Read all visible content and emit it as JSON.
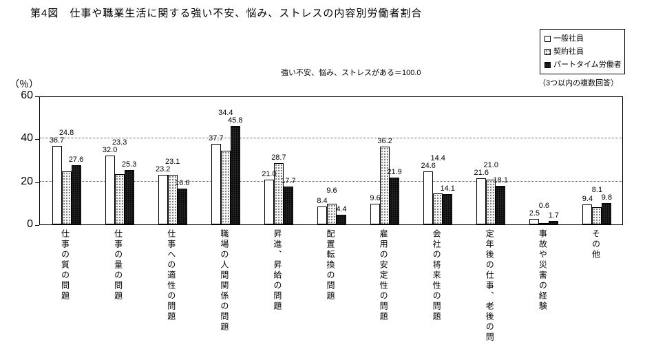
{
  "title": "第4図　仕事や職業生活に関する強い不安、悩み、ストレスの内容別労働者割合",
  "subtitle": "強い不安、悩み、ストレスがある＝100.0",
  "legend": {
    "note": "（3つ以内の複数回答）"
  },
  "y_axis": {
    "unit_label": "（％）",
    "ticks": [
      0,
      20,
      40,
      60
    ],
    "max": 60
  },
  "colors": {
    "axis": "#000000",
    "grid": "#555555",
    "bar_plain": "#ffffff",
    "bar_dotted": "#f4f4f4",
    "bar_dark": "#2b2b2b"
  },
  "chart_data": {
    "type": "bar",
    "title": "第4図　仕事や職業生活に関する強い不安、悩み、ストレスの内容別労働者割合",
    "subtitle": "強い不安、悩み、ストレスがある＝100.0",
    "xlabel": "",
    "ylabel": "（％）",
    "ylim": [
      0,
      60
    ],
    "grid": "horizontal-dotted-at-20-and-40",
    "legend_position": "top-right",
    "categories": [
      "仕事の質の問題",
      "仕事の量の問題",
      "仕事への適性の問題",
      "職場の人間関係の問題",
      "昇進、昇給の問題",
      "配置転換の問題",
      "雇用の安定性の問題",
      "会社の将来性の問題",
      "定年後の仕事、老後の問",
      "事故や災害の経験",
      "その他"
    ],
    "series": [
      {
        "name": "一般社員",
        "key": "ippan-shain",
        "style": "plain",
        "values": [
          36.7,
          32.0,
          23.2,
          37.7,
          21.0,
          8.4,
          9.6,
          24.6,
          21.6,
          2.5,
          9.4
        ]
      },
      {
        "name": "契約社員",
        "key": "keiyaku-shain",
        "style": "dotted",
        "values": [
          24.8,
          23.3,
          23.1,
          34.4,
          28.7,
          9.6,
          36.2,
          14.4,
          21.0,
          0.6,
          8.1
        ]
      },
      {
        "name": "パートタイム労働者",
        "key": "part-time",
        "style": "dark",
        "values": [
          27.6,
          25.3,
          16.6,
          45.8,
          17.7,
          4.4,
          21.9,
          14.1,
          18.1,
          1.7,
          9.8
        ]
      }
    ]
  }
}
